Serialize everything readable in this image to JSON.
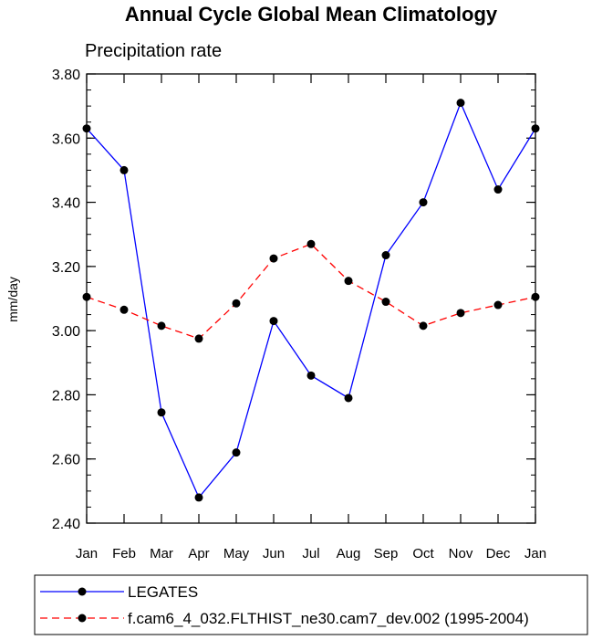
{
  "chart_data": {
    "type": "line",
    "title": "Annual Cycle Global Mean Climatology",
    "subtitle": "Precipitation rate",
    "xlabel": "",
    "ylabel": "mm/day",
    "categories": [
      "Jan",
      "Feb",
      "Mar",
      "Apr",
      "May",
      "Jun",
      "Jul",
      "Aug",
      "Sep",
      "Oct",
      "Nov",
      "Dec",
      "Jan"
    ],
    "ylim": [
      2.4,
      3.8
    ],
    "yticks": [
      "2.40",
      "2.60",
      "2.80",
      "3.00",
      "3.20",
      "3.40",
      "3.60",
      "3.80"
    ],
    "ytick_values": [
      2.4,
      2.6,
      2.8,
      3.0,
      3.2,
      3.4,
      3.6,
      3.8
    ],
    "grid": false,
    "legend_position": "bottom",
    "series": [
      {
        "name": "LEGATES",
        "color": "#0000ff",
        "dash": "solid",
        "values": [
          3.63,
          3.5,
          2.745,
          2.48,
          2.62,
          3.03,
          2.86,
          2.79,
          3.235,
          3.4,
          3.71,
          3.44,
          3.63
        ]
      },
      {
        "name": "f.cam6_4_032.FLTHIST_ne30.cam7_dev.002 (1995-2004)",
        "color": "#ff0000",
        "dash": "dashed",
        "values": [
          3.105,
          3.065,
          3.015,
          2.975,
          3.085,
          3.225,
          3.27,
          3.155,
          3.09,
          3.015,
          3.055,
          3.08,
          3.105
        ]
      }
    ]
  }
}
